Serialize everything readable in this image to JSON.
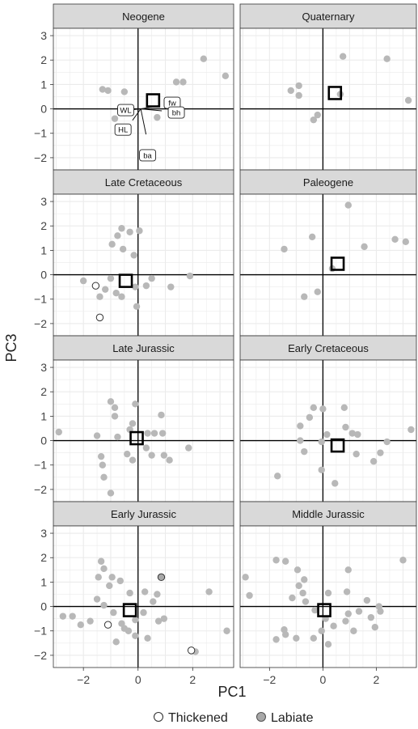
{
  "figure": {
    "xlabel": "PC1",
    "ylabel": "PC3",
    "legend": [
      {
        "label": "Thickened",
        "fill": "#ffffff",
        "stroke": "#333333"
      },
      {
        "label": "Labiate",
        "fill": "#a8a8a8",
        "stroke": "#555555"
      }
    ]
  },
  "colors": {
    "strip": "#d9d9d9",
    "grid": "#ebebeb",
    "point": "#b8b8b8",
    "axis_line": "#000000",
    "centroid": "#000000"
  },
  "chart_data": [
    {
      "type": "scatter",
      "title": "Neogene",
      "xlim": [
        -3.1,
        3.5
      ],
      "ylim": [
        -2.5,
        3.3
      ],
      "xticks": [
        -2,
        0,
        2
      ],
      "yticks": [
        -2,
        -1,
        0,
        1,
        2,
        3
      ],
      "points": [
        [
          -1.3,
          0.8
        ],
        [
          -1.1,
          0.75
        ],
        [
          -0.5,
          0.7
        ],
        [
          -0.85,
          -0.4
        ],
        [
          0.7,
          -0.35
        ],
        [
          1.4,
          1.1
        ],
        [
          1.65,
          1.1
        ],
        [
          2.4,
          2.05
        ],
        [
          3.2,
          1.35
        ]
      ],
      "thickened": [],
      "labiate": [],
      "centroid": [
        0.55,
        0.35
      ],
      "vectors": [
        {
          "label": "fw",
          "x": 1.25,
          "y": 0.25
        },
        {
          "label": "bh",
          "x": 1.4,
          "y": -0.15
        },
        {
          "label": "WL",
          "x": -0.45,
          "y": -0.05
        },
        {
          "label": "HL",
          "x": -0.55,
          "y": -0.85
        },
        {
          "label": "ba",
          "x": 0.35,
          "y": -1.9
        }
      ]
    },
    {
      "type": "scatter",
      "title": "Quaternary",
      "xlim": [
        -3.1,
        3.5
      ],
      "ylim": [
        -2.5,
        3.3
      ],
      "xticks": [
        -2,
        0,
        2
      ],
      "yticks": [
        -2,
        -1,
        0,
        1,
        2,
        3
      ],
      "points": [
        [
          -1.2,
          0.75
        ],
        [
          -0.9,
          0.95
        ],
        [
          -0.9,
          0.55
        ],
        [
          -0.2,
          -0.25
        ],
        [
          -0.35,
          -0.45
        ],
        [
          0.75,
          2.15
        ],
        [
          0.65,
          0.6
        ],
        [
          2.4,
          2.05
        ],
        [
          3.2,
          0.35
        ]
      ],
      "thickened": [],
      "labiate": [],
      "centroid": [
        0.45,
        0.65
      ],
      "vectors": []
    },
    {
      "type": "scatter",
      "title": "Late Cretaceous",
      "xlim": [
        -3.1,
        3.5
      ],
      "ylim": [
        -2.5,
        3.3
      ],
      "xticks": [
        -2,
        0,
        2
      ],
      "yticks": [
        -2,
        -1,
        0,
        1,
        2,
        3
      ],
      "points": [
        [
          -0.95,
          1.25
        ],
        [
          -0.6,
          1.9
        ],
        [
          -0.75,
          1.6
        ],
        [
          -0.3,
          1.75
        ],
        [
          -0.55,
          1.05
        ],
        [
          0.05,
          1.8
        ],
        [
          -0.15,
          0.8
        ],
        [
          -2.0,
          -0.25
        ],
        [
          -1.0,
          -0.15
        ],
        [
          -1.2,
          -0.6
        ],
        [
          -1.4,
          -0.9
        ],
        [
          -0.8,
          -0.75
        ],
        [
          -0.6,
          -0.9
        ],
        [
          -0.1,
          -0.5
        ],
        [
          0.3,
          -0.45
        ],
        [
          0.5,
          -0.15
        ],
        [
          1.2,
          -0.5
        ],
        [
          1.9,
          -0.05
        ],
        [
          -0.05,
          -1.3
        ]
      ],
      "thickened": [
        [
          -1.55,
          -0.45
        ],
        [
          -1.4,
          -1.75
        ]
      ],
      "labiate": [],
      "centroid": [
        -0.45,
        -0.25
      ],
      "vectors": []
    },
    {
      "type": "scatter",
      "title": "Paleogene",
      "xlim": [
        -3.1,
        3.5
      ],
      "ylim": [
        -2.5,
        3.3
      ],
      "xticks": [
        -2,
        0,
        2
      ],
      "yticks": [
        -2,
        -1,
        0,
        1,
        2,
        3
      ],
      "points": [
        [
          -1.45,
          1.05
        ],
        [
          -0.4,
          1.55
        ],
        [
          0.95,
          2.85
        ],
        [
          1.55,
          1.15
        ],
        [
          2.7,
          1.45
        ],
        [
          3.1,
          1.35
        ],
        [
          0.35,
          0.25
        ],
        [
          -0.2,
          -0.7
        ],
        [
          -0.7,
          -0.9
        ]
      ],
      "thickened": [],
      "labiate": [],
      "centroid": [
        0.55,
        0.45
      ],
      "vectors": []
    },
    {
      "type": "scatter",
      "title": "Late Jurassic",
      "xlim": [
        -3.1,
        3.5
      ],
      "ylim": [
        -2.5,
        3.3
      ],
      "xticks": [
        -2,
        0,
        2
      ],
      "yticks": [
        -2,
        -1,
        0,
        1,
        2,
        3
      ],
      "points": [
        [
          -1.0,
          1.6
        ],
        [
          -0.85,
          1.35
        ],
        [
          -0.1,
          1.5
        ],
        [
          -0.85,
          1.0
        ],
        [
          -0.2,
          0.7
        ],
        [
          -0.3,
          0.45
        ],
        [
          0.85,
          1.05
        ],
        [
          0.9,
          0.3
        ],
        [
          -1.5,
          0.2
        ],
        [
          -0.75,
          0.15
        ],
        [
          0.35,
          0.3
        ],
        [
          0.6,
          0.3
        ],
        [
          -0.4,
          -0.55
        ],
        [
          -0.2,
          -0.8
        ],
        [
          0.3,
          -0.3
        ],
        [
          0.5,
          -0.6
        ],
        [
          0.95,
          -0.6
        ],
        [
          1.85,
          -0.3
        ],
        [
          1.15,
          -0.8
        ],
        [
          -1.35,
          -0.65
        ],
        [
          -1.3,
          -1.0
        ],
        [
          -1.25,
          -1.5
        ],
        [
          -1.0,
          -2.15
        ],
        [
          -2.9,
          0.35
        ]
      ],
      "thickened": [],
      "labiate": [],
      "centroid": [
        -0.05,
        0.1
      ],
      "vectors": []
    },
    {
      "type": "scatter",
      "title": "Early Cretaceous",
      "xlim": [
        -3.1,
        3.5
      ],
      "ylim": [
        -2.5,
        3.3
      ],
      "xticks": [
        -2,
        0,
        2
      ],
      "yticks": [
        -2,
        -1,
        0,
        1,
        2,
        3
      ],
      "points": [
        [
          -0.35,
          1.35
        ],
        [
          -0.5,
          0.95
        ],
        [
          -0.85,
          0.6
        ],
        [
          0.0,
          1.3
        ],
        [
          0.8,
          1.35
        ],
        [
          0.85,
          0.55
        ],
        [
          1.1,
          0.3
        ],
        [
          1.3,
          0.25
        ],
        [
          -0.85,
          0.0
        ],
        [
          -0.7,
          -0.45
        ],
        [
          -0.05,
          -0.05
        ],
        [
          0.15,
          0.25
        ],
        [
          -0.05,
          -1.2
        ],
        [
          0.45,
          -1.75
        ],
        [
          1.25,
          -0.55
        ],
        [
          2.15,
          -0.5
        ],
        [
          1.9,
          -0.85
        ],
        [
          2.4,
          -0.05
        ],
        [
          3.3,
          0.45
        ],
        [
          -1.7,
          -1.45
        ]
      ],
      "thickened": [],
      "labiate": [],
      "centroid": [
        0.55,
        -0.2
      ],
      "vectors": []
    },
    {
      "type": "scatter",
      "title": "Early Jurassic",
      "xlim": [
        -3.1,
        3.5
      ],
      "ylim": [
        -2.5,
        3.3
      ],
      "xticks": [
        -2,
        0,
        2
      ],
      "yticks": [
        -2,
        -1,
        0,
        1,
        2,
        3
      ],
      "points": [
        [
          -1.35,
          1.85
        ],
        [
          -1.45,
          1.2
        ],
        [
          -1.25,
          1.55
        ],
        [
          -0.95,
          1.2
        ],
        [
          -1.05,
          0.85
        ],
        [
          -0.65,
          1.05
        ],
        [
          -1.5,
          0.3
        ],
        [
          -1.25,
          0.05
        ],
        [
          -0.3,
          0.55
        ],
        [
          0.25,
          0.6
        ],
        [
          0.55,
          0.2
        ],
        [
          0.7,
          0.5
        ],
        [
          -0.9,
          -0.25
        ],
        [
          -0.6,
          -0.7
        ],
        [
          -0.1,
          -0.55
        ],
        [
          0.2,
          -0.25
        ],
        [
          0.75,
          -0.6
        ],
        [
          0.95,
          -0.5
        ],
        [
          -0.35,
          -1.0
        ],
        [
          -0.1,
          -1.2
        ],
        [
          0.35,
          -1.3
        ],
        [
          -2.4,
          -0.4
        ],
        [
          -2.75,
          -0.4
        ],
        [
          -2.1,
          -0.75
        ],
        [
          -1.75,
          -0.6
        ],
        [
          2.6,
          0.6
        ],
        [
          2.1,
          -1.85
        ],
        [
          3.25,
          -1.0
        ],
        [
          -0.8,
          -1.45
        ],
        [
          -0.5,
          -0.9
        ]
      ],
      "thickened": [
        [
          -1.1,
          -0.75
        ],
        [
          1.95,
          -1.8
        ]
      ],
      "labiate": [
        [
          0.85,
          1.2
        ]
      ],
      "centroid": [
        -0.3,
        -0.15
      ],
      "vectors": []
    },
    {
      "type": "scatter",
      "title": "Middle Jurassic",
      "xlim": [
        -3.1,
        3.5
      ],
      "ylim": [
        -2.5,
        3.3
      ],
      "xticks": [
        -2,
        0,
        2
      ],
      "yticks": [
        -2,
        -1,
        0,
        1,
        2,
        3
      ],
      "points": [
        [
          -1.75,
          1.9
        ],
        [
          -1.4,
          1.85
        ],
        [
          -2.75,
          0.45
        ],
        [
          -2.9,
          1.2
        ],
        [
          -0.95,
          1.5
        ],
        [
          -0.9,
          0.85
        ],
        [
          -0.7,
          1.1
        ],
        [
          -0.75,
          0.55
        ],
        [
          -1.15,
          0.35
        ],
        [
          -0.65,
          0.2
        ],
        [
          0.95,
          1.5
        ],
        [
          0.9,
          0.6
        ],
        [
          0.2,
          0.55
        ],
        [
          1.65,
          0.25
        ],
        [
          2.1,
          0.0
        ],
        [
          1.35,
          -0.2
        ],
        [
          0.95,
          -0.3
        ],
        [
          -0.3,
          -0.15
        ],
        [
          0.1,
          -0.5
        ],
        [
          0.4,
          -0.8
        ],
        [
          0.85,
          -0.6
        ],
        [
          1.8,
          -0.45
        ],
        [
          1.95,
          -0.85
        ],
        [
          1.15,
          -1.0
        ],
        [
          -0.05,
          -1.0
        ],
        [
          -0.35,
          -1.3
        ],
        [
          0.2,
          -1.55
        ],
        [
          -1.45,
          -0.95
        ],
        [
          -1.0,
          -1.3
        ],
        [
          -1.75,
          -1.35
        ],
        [
          -1.4,
          -1.15
        ],
        [
          3.0,
          1.9
        ],
        [
          2.15,
          -0.2
        ]
      ],
      "thickened": [],
      "labiate": [],
      "centroid": [
        0.05,
        -0.15
      ],
      "vectors": []
    }
  ]
}
